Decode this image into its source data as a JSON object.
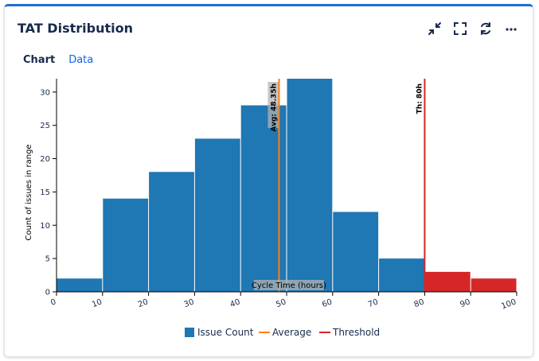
{
  "widget": {
    "title": "TAT Distribution",
    "actions": [
      {
        "name": "collapse-icon"
      },
      {
        "name": "fullscreen-icon"
      },
      {
        "name": "refresh-icon"
      },
      {
        "name": "more-icon"
      }
    ]
  },
  "tabs": {
    "chart_label": "Chart",
    "data_label": "Data",
    "active": "Chart"
  },
  "colors": {
    "bar": "#1f77b4",
    "over_threshold": "#d62728",
    "average": "#ff7f0e",
    "threshold": "#d62728",
    "accent": "#1f6fd1"
  },
  "chart_data": {
    "type": "bar",
    "title": "TAT Distribution",
    "xlabel": "Cycle Time (hours)",
    "ylabel": "Count of issues in range",
    "xlim": [
      0,
      100
    ],
    "ylim": [
      0,
      32
    ],
    "x_ticks": [
      "0",
      "10",
      "20",
      "30",
      "40",
      "50",
      "60",
      "70",
      "80",
      "90",
      "100"
    ],
    "y_ticks": [
      "0",
      "5",
      "10",
      "15",
      "20",
      "25",
      "30"
    ],
    "bins": [
      {
        "start": 0,
        "end": 10,
        "count": 2
      },
      {
        "start": 10,
        "end": 20,
        "count": 14
      },
      {
        "start": 20,
        "end": 30,
        "count": 18
      },
      {
        "start": 30,
        "end": 40,
        "count": 23
      },
      {
        "start": 40,
        "end": 50,
        "count": 28
      },
      {
        "start": 50,
        "end": 60,
        "count": 32
      },
      {
        "start": 60,
        "end": 70,
        "count": 12
      },
      {
        "start": 70,
        "end": 80,
        "count": 5
      },
      {
        "start": 80,
        "end": 90,
        "count": 3
      },
      {
        "start": 90,
        "end": 100,
        "count": 2
      }
    ],
    "average": {
      "value": 48.35,
      "label": "Avg: 48.35h"
    },
    "threshold": {
      "value": 80,
      "label": "Th: 80h"
    },
    "legend": [
      "Issue Count",
      "Average",
      "Threshold"
    ]
  }
}
